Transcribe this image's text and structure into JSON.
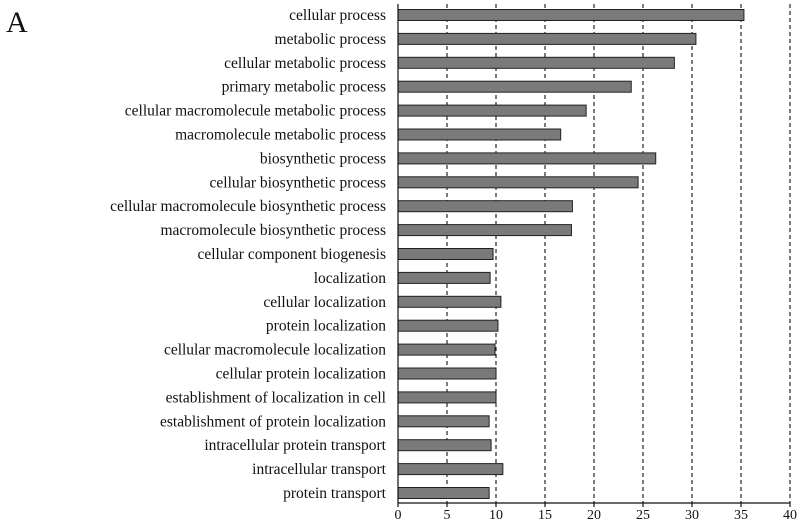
{
  "panel_label": "A",
  "chart_data": {
    "type": "bar",
    "orientation": "horizontal",
    "categories": [
      "cellular process",
      "metabolic process",
      "cellular metabolic process",
      "primary metabolic process",
      "cellular macromolecule metabolic process",
      "macromolecule metabolic process",
      "biosynthetic process",
      "cellular biosynthetic process",
      "cellular macromolecule biosynthetic process",
      "macromolecule biosynthetic process",
      "cellular component biogenesis",
      "localization",
      "cellular localization",
      "protein localization",
      "cellular macromolecule localization",
      "cellular protein localization",
      "establishment of localization in cell",
      "establishment of protein localization",
      "intracellular protein transport",
      "intracellular transport",
      "protein transport"
    ],
    "values": [
      35.3,
      30.4,
      28.2,
      23.8,
      19.2,
      16.6,
      26.3,
      24.5,
      17.8,
      17.7,
      9.7,
      9.4,
      10.5,
      10.2,
      9.9,
      10.0,
      10.0,
      9.3,
      9.5,
      10.7,
      9.3
    ],
    "xlim": [
      0,
      40
    ],
    "xticks": [
      0,
      5,
      10,
      15,
      20,
      25,
      30,
      35,
      40
    ],
    "grid": "vertical dashed",
    "bar_color": "#7a7a7a"
  }
}
